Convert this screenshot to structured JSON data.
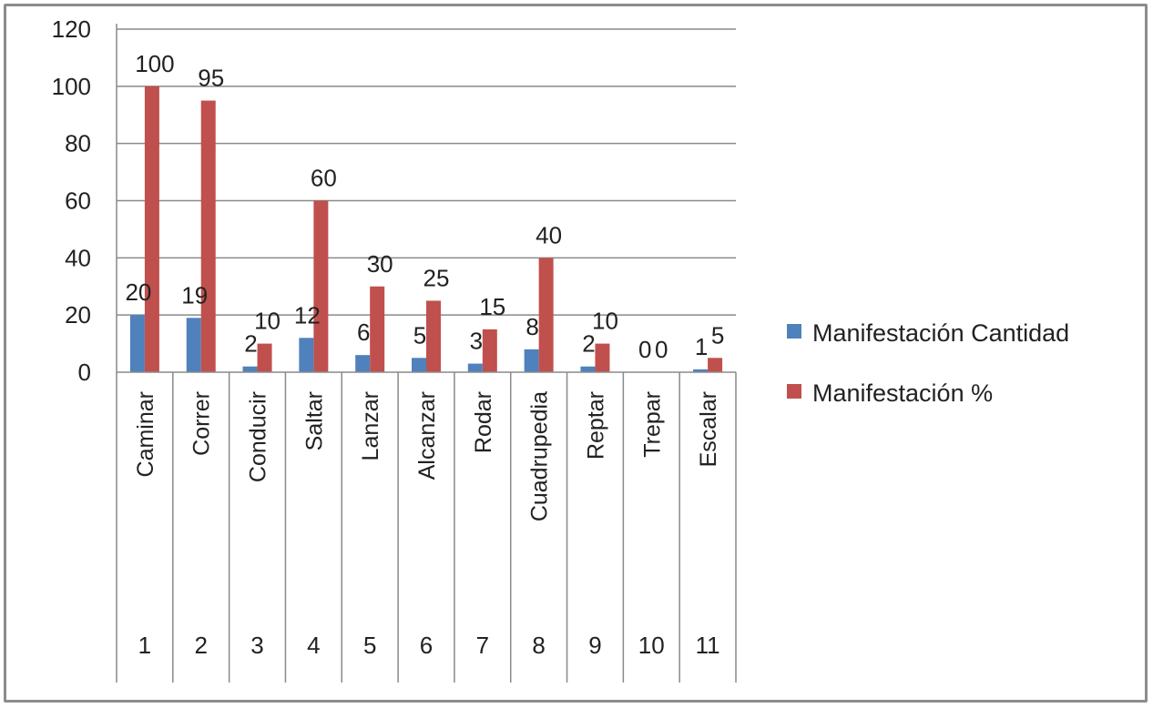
{
  "chart_data": {
    "type": "bar",
    "title": "",
    "xlabel": "",
    "ylabel": "",
    "ylim": [
      0,
      120
    ],
    "yticks": [
      0,
      20,
      40,
      60,
      80,
      100,
      120
    ],
    "grid": true,
    "legend_position": "right",
    "categories": [
      "Caminar",
      "Correr",
      "Conducir",
      "Saltar",
      "Lanzar",
      "Alcanzar",
      "Rodar",
      "Cuadrupedia",
      "Reptar",
      "Trepar",
      "Escalar"
    ],
    "category_index": [
      "1",
      "2",
      "3",
      "4",
      "5",
      "6",
      "7",
      "8",
      "9",
      "10",
      "11"
    ],
    "series": [
      {
        "name": "Manifestación Cantidad",
        "color": "#4f81bd",
        "values": [
          20,
          19,
          2,
          12,
          6,
          5,
          3,
          8,
          2,
          0,
          1
        ]
      },
      {
        "name": "Manifestación %",
        "color": "#c0504d",
        "values": [
          100,
          95,
          10,
          60,
          30,
          25,
          15,
          40,
          10,
          0,
          5
        ]
      }
    ]
  }
}
